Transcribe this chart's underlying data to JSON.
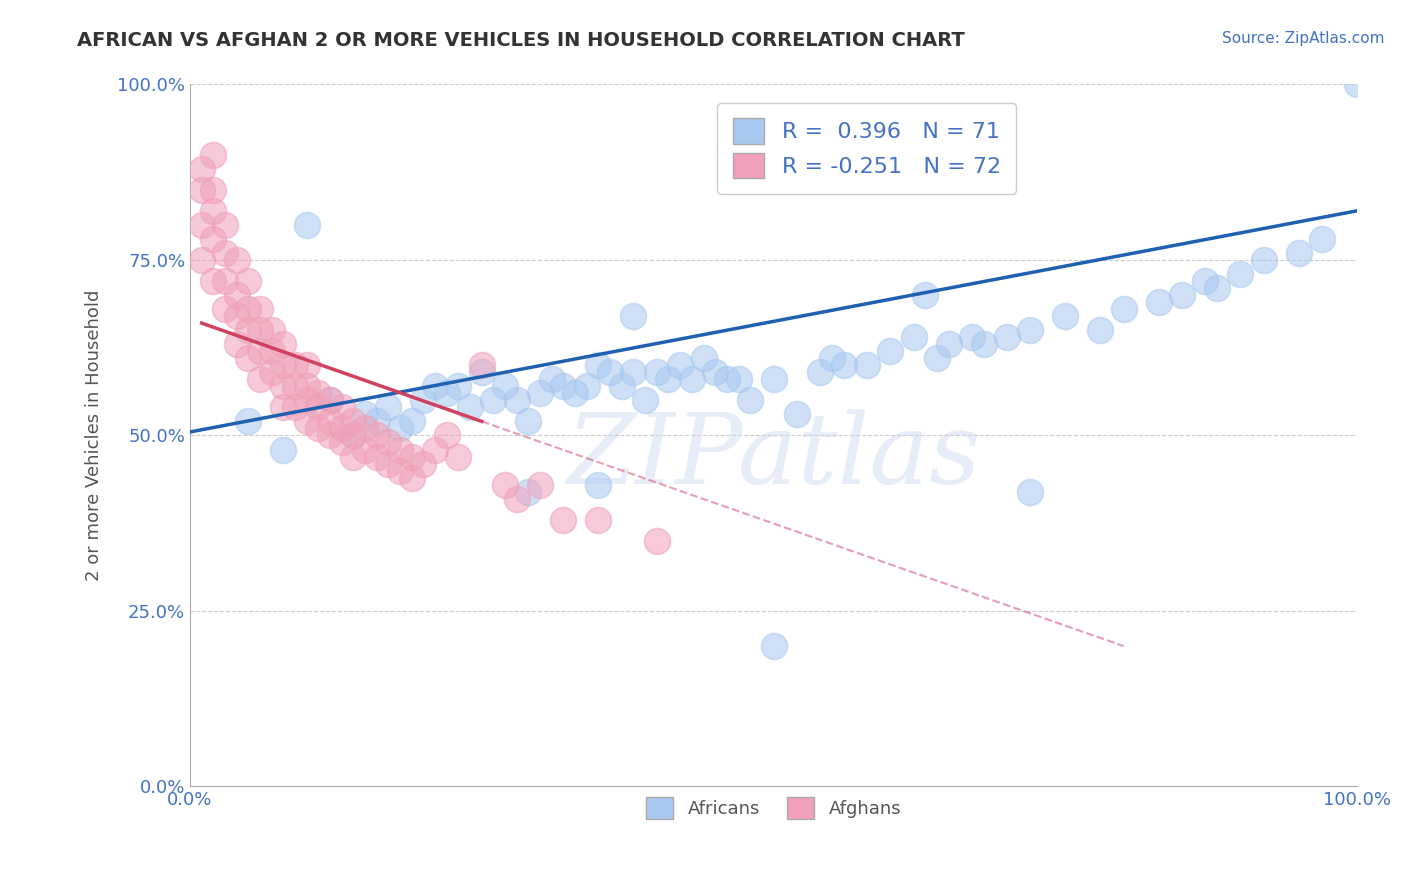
{
  "title": "AFRICAN VS AFGHAN 2 OR MORE VEHICLES IN HOUSEHOLD CORRELATION CHART",
  "ylabel": "2 or more Vehicles in Household",
  "source_text": "Source: ZipAtlas.com",
  "watermark": "ZIPatlas",
  "xlim": [
    0.0,
    1.0
  ],
  "ylim": [
    0.0,
    1.0
  ],
  "xtick_labels": [
    "0.0%",
    "100.0%"
  ],
  "ytick_labels": [
    "0.0%",
    "25.0%",
    "50.0%",
    "75.0%",
    "100.0%"
  ],
  "ytick_values": [
    0.0,
    0.25,
    0.5,
    0.75,
    1.0
  ],
  "blue_R": 0.396,
  "blue_N": 71,
  "pink_R": -0.251,
  "pink_N": 72,
  "blue_color": "#A8C8F0",
  "pink_color": "#F0A0B8",
  "blue_line_color": "#2060B0",
  "pink_line_color": "#D04060",
  "grid_color": "#CCCCCC",
  "bg_color": "#FFFFFF",
  "legend_label_blue": "Africans",
  "legend_label_pink": "Afghans",
  "blue_scatter_x": [
    0.05,
    0.08,
    0.1,
    0.12,
    0.14,
    0.15,
    0.16,
    0.17,
    0.18,
    0.19,
    0.2,
    0.21,
    0.22,
    0.23,
    0.24,
    0.25,
    0.26,
    0.27,
    0.28,
    0.29,
    0.3,
    0.31,
    0.32,
    0.33,
    0.34,
    0.35,
    0.36,
    0.37,
    0.38,
    0.39,
    0.4,
    0.41,
    0.42,
    0.43,
    0.44,
    0.45,
    0.46,
    0.47,
    0.48,
    0.5,
    0.52,
    0.54,
    0.55,
    0.56,
    0.58,
    0.6,
    0.62,
    0.64,
    0.65,
    0.67,
    0.68,
    0.7,
    0.72,
    0.75,
    0.78,
    0.8,
    0.83,
    0.85,
    0.87,
    0.88,
    0.9,
    0.92,
    0.95,
    0.97,
    1.0,
    0.38,
    0.5,
    0.35,
    0.29,
    0.63,
    0.72
  ],
  "blue_scatter_y": [
    0.52,
    0.48,
    0.8,
    0.55,
    0.5,
    0.53,
    0.52,
    0.54,
    0.51,
    0.52,
    0.55,
    0.57,
    0.56,
    0.57,
    0.54,
    0.59,
    0.55,
    0.57,
    0.55,
    0.52,
    0.56,
    0.58,
    0.57,
    0.56,
    0.57,
    0.6,
    0.59,
    0.57,
    0.59,
    0.55,
    0.59,
    0.58,
    0.6,
    0.58,
    0.61,
    0.59,
    0.58,
    0.58,
    0.55,
    0.58,
    0.53,
    0.59,
    0.61,
    0.6,
    0.6,
    0.62,
    0.64,
    0.61,
    0.63,
    0.64,
    0.63,
    0.64,
    0.65,
    0.67,
    0.65,
    0.68,
    0.69,
    0.7,
    0.72,
    0.71,
    0.73,
    0.75,
    0.76,
    0.78,
    1.0,
    0.67,
    0.2,
    0.43,
    0.42,
    0.7,
    0.42
  ],
  "pink_scatter_x": [
    0.01,
    0.01,
    0.01,
    0.01,
    0.02,
    0.02,
    0.02,
    0.02,
    0.02,
    0.03,
    0.03,
    0.03,
    0.03,
    0.04,
    0.04,
    0.04,
    0.04,
    0.05,
    0.05,
    0.05,
    0.05,
    0.06,
    0.06,
    0.06,
    0.06,
    0.07,
    0.07,
    0.07,
    0.08,
    0.08,
    0.08,
    0.08,
    0.09,
    0.09,
    0.09,
    0.1,
    0.1,
    0.1,
    0.1,
    0.11,
    0.11,
    0.11,
    0.12,
    0.12,
    0.12,
    0.13,
    0.13,
    0.13,
    0.14,
    0.14,
    0.14,
    0.15,
    0.15,
    0.16,
    0.16,
    0.17,
    0.17,
    0.18,
    0.18,
    0.19,
    0.19,
    0.2,
    0.21,
    0.22,
    0.23,
    0.25,
    0.27,
    0.28,
    0.3,
    0.32,
    0.35,
    0.4
  ],
  "pink_scatter_y": [
    0.88,
    0.85,
    0.8,
    0.75,
    0.9,
    0.85,
    0.82,
    0.78,
    0.72,
    0.8,
    0.76,
    0.72,
    0.68,
    0.75,
    0.7,
    0.67,
    0.63,
    0.72,
    0.68,
    0.65,
    0.61,
    0.68,
    0.65,
    0.62,
    0.58,
    0.65,
    0.62,
    0.59,
    0.63,
    0.6,
    0.57,
    0.54,
    0.6,
    0.57,
    0.54,
    0.6,
    0.57,
    0.55,
    0.52,
    0.56,
    0.54,
    0.51,
    0.55,
    0.52,
    0.5,
    0.54,
    0.51,
    0.49,
    0.52,
    0.5,
    0.47,
    0.51,
    0.48,
    0.5,
    0.47,
    0.49,
    0.46,
    0.48,
    0.45,
    0.47,
    0.44,
    0.46,
    0.48,
    0.5,
    0.47,
    0.6,
    0.43,
    0.41,
    0.43,
    0.38,
    0.38,
    0.35
  ],
  "blue_line_x0": 0.0,
  "blue_line_y0": 0.505,
  "blue_line_x1": 1.0,
  "blue_line_y1": 0.82,
  "pink_line_solid_x0": 0.01,
  "pink_line_solid_y0": 0.66,
  "pink_line_solid_x1": 0.25,
  "pink_line_solid_y1": 0.52,
  "pink_line_dash_x0": 0.25,
  "pink_line_dash_y0": 0.52,
  "pink_line_dash_x1": 0.8,
  "pink_line_dash_y1": 0.2
}
